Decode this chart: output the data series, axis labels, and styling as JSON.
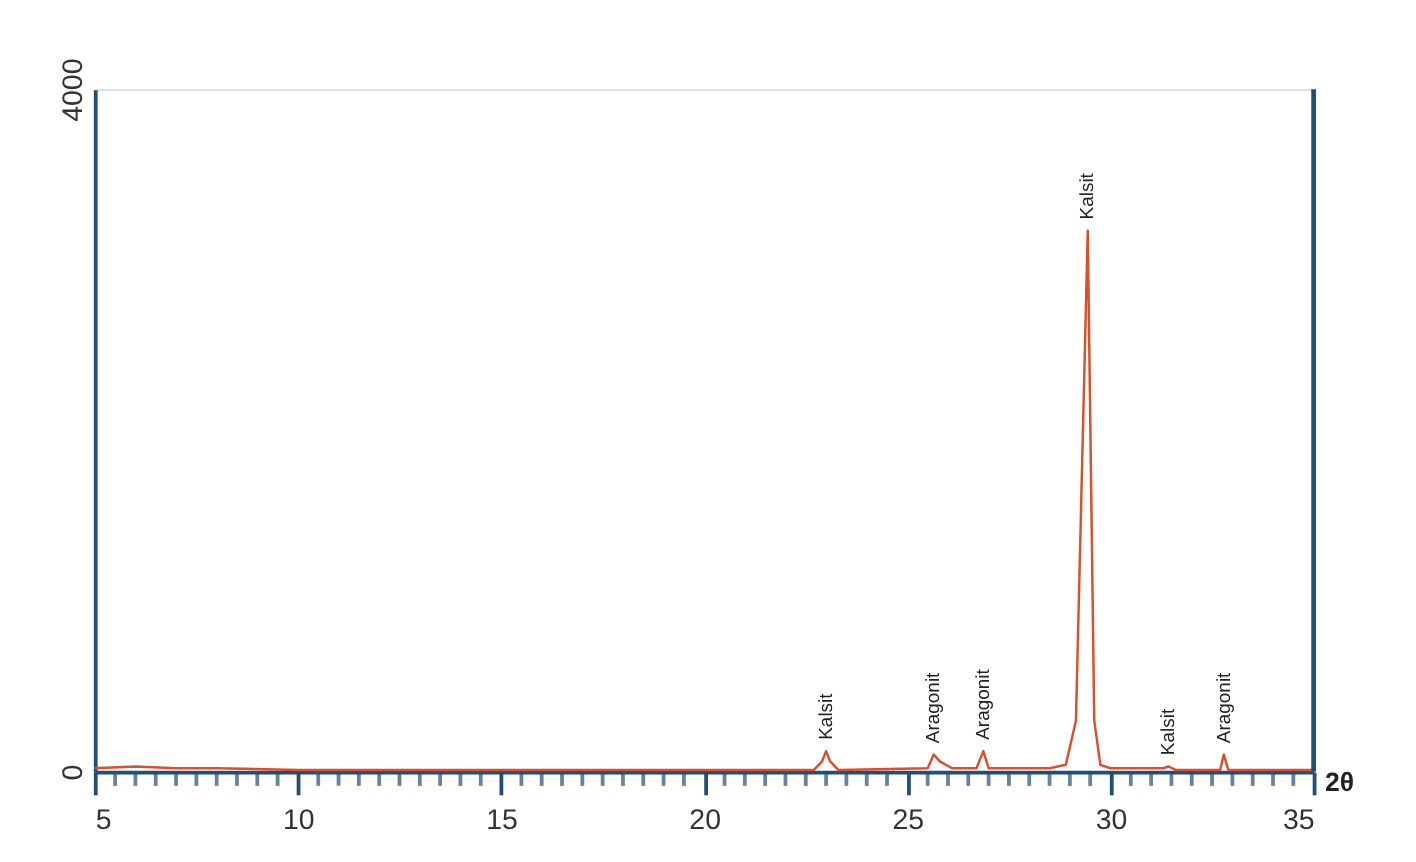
{
  "chart_data": {
    "type": "line",
    "xlabel": "2θ",
    "color": "#d9502a",
    "x": [
      5,
      6,
      7,
      8,
      10,
      15,
      20,
      22.7,
      22.9,
      23.0,
      23.1,
      23.3,
      25.5,
      25.65,
      25.8,
      26.1,
      26.7,
      26.87,
      27.0,
      28.5,
      28.9,
      29.15,
      29.44,
      29.6,
      29.75,
      30.0,
      31.3,
      31.43,
      31.6,
      32.7,
      32.79,
      32.9,
      35
    ],
    "values": [
      20,
      30,
      20,
      20,
      10,
      10,
      10,
      10,
      60,
      120,
      60,
      10,
      20,
      100,
      60,
      20,
      20,
      120,
      20,
      20,
      40,
      300,
      3170,
      300,
      40,
      20,
      20,
      30,
      10,
      10,
      100,
      10,
      10
    ],
    "xlim": [
      5,
      35
    ],
    "ylim": [
      0,
      4000
    ],
    "xticks": [
      5,
      {
        "value": 5.5,
        "label": null
      },
      {
        "value": 6,
        "label": null
      },
      {
        "value": 6.5,
        "label": null
      },
      {
        "value": 7,
        "label": null
      },
      {
        "value": 7.5,
        "label": null
      },
      {
        "value": 8,
        "label": null
      },
      {
        "value": 8.5,
        "label": null
      },
      {
        "value": 9,
        "label": null
      },
      {
        "value": 9.5,
        "label": null
      },
      10,
      {
        "value": 10.5,
        "label": null
      },
      {
        "value": 11,
        "label": null
      },
      {
        "value": 11.5,
        "label": null
      },
      {
        "value": 12,
        "label": null
      },
      {
        "value": 12.5,
        "label": null
      },
      {
        "value": 13,
        "label": null
      },
      {
        "value": 13.5,
        "label": null
      },
      {
        "value": 14,
        "label": null
      },
      {
        "value": 14.5,
        "label": null
      },
      15,
      {
        "value": 15.5,
        "label": null
      },
      {
        "value": 16,
        "label": null
      },
      {
        "value": 16.5,
        "label": null
      },
      {
        "value": 17,
        "label": null
      },
      {
        "value": 17.5,
        "label": null
      },
      {
        "value": 18,
        "label": null
      },
      {
        "value": 18.5,
        "label": null
      },
      {
        "value": 19,
        "label": null
      },
      {
        "value": 19.5,
        "label": null
      },
      20,
      {
        "value": 20.5,
        "label": null
      },
      {
        "value": 21,
        "label": null
      },
      {
        "value": 21.5,
        "label": null
      },
      {
        "value": 22,
        "label": null
      },
      {
        "value": 22.5,
        "label": null
      },
      {
        "value": 23,
        "label": null
      },
      {
        "value": 23.5,
        "label": null
      },
      {
        "value": 24,
        "label": null
      },
      {
        "value": 24.5,
        "label": null
      },
      25,
      {
        "value": 25.5,
        "label": null
      },
      {
        "value": 26,
        "label": null
      },
      {
        "value": 26.5,
        "label": null
      },
      {
        "value": 27,
        "label": null
      },
      {
        "value": 27.5,
        "label": null
      },
      {
        "value": 28,
        "label": null
      },
      {
        "value": 28.5,
        "label": null
      },
      {
        "value": 29,
        "label": null
      },
      {
        "value": 29.5,
        "label": null
      },
      30,
      {
        "value": 30.5,
        "label": null
      },
      {
        "value": 31,
        "label": null
      },
      {
        "value": 31.5,
        "label": null
      },
      {
        "value": 32,
        "label": null
      },
      {
        "value": 32.5,
        "label": null
      },
      {
        "value": 33,
        "label": null
      },
      {
        "value": 33.5,
        "label": null
      },
      {
        "value": 34,
        "label": null
      },
      {
        "value": 34.5,
        "label": null
      },
      35
    ],
    "yticks": [
      0,
      4000
    ],
    "annotations": [
      {
        "text": "Kalsit",
        "x": 23.0,
        "y": 120
      },
      {
        "text": "Aragonit",
        "x": 25.65,
        "y": 100
      },
      {
        "text": "Aragonit",
        "x": 26.87,
        "y": 120
      },
      {
        "text": "Kalsit",
        "x": 29.44,
        "y": 3170
      },
      {
        "text": "Kalsit",
        "x": 31.43,
        "y": 30
      },
      {
        "text": "Aragonit",
        "x": 32.79,
        "y": 100
      }
    ],
    "grid": false,
    "marker": "none",
    "line_style": "solid"
  }
}
